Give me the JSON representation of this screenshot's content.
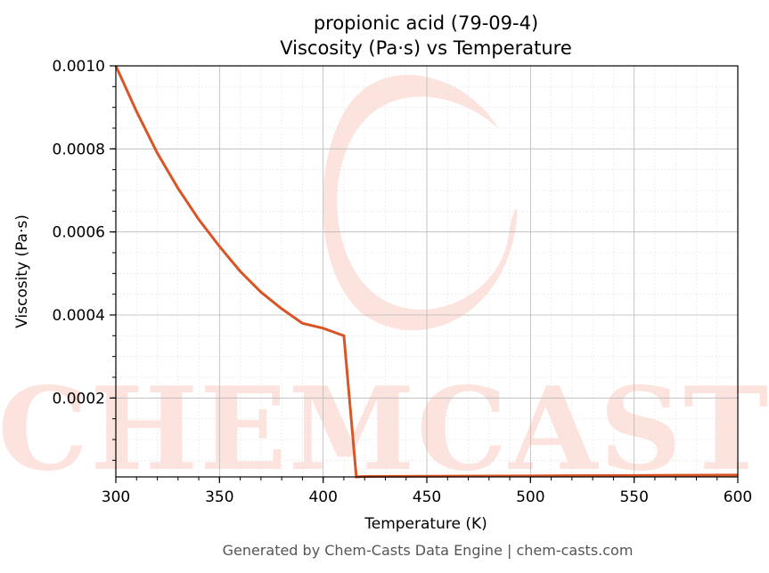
{
  "chart_data": {
    "type": "line",
    "title": "propionic acid (79-09-4)",
    "subtitle": "Viscosity (Pa·s) vs Temperature",
    "xlabel": "Temperature (K)",
    "ylabel": "Viscosity (Pa·s)",
    "xlim": [
      300,
      600
    ],
    "ylim": [
      1e-05,
      0.001
    ],
    "x_ticks": [
      300,
      350,
      400,
      450,
      500,
      550,
      600
    ],
    "x_tick_labels": [
      "300",
      "350",
      "400",
      "450",
      "500",
      "550",
      "600"
    ],
    "y_ticks": [
      0.0002,
      0.0004,
      0.0006,
      0.0008,
      0.001
    ],
    "y_tick_labels": [
      "0.0002",
      "0.0004",
      "0.0006",
      "0.0008",
      "0.0010"
    ],
    "grid": true,
    "line_color": "#d95427",
    "series": [
      {
        "x": [
          300,
          310,
          320,
          330,
          340,
          350,
          360,
          370,
          380,
          390,
          400,
          410,
          416,
          420,
          450,
          500,
          550,
          600
        ],
        "y": [
          0.001,
          0.00089,
          0.00079,
          0.000705,
          0.00063,
          0.000565,
          0.000505,
          0.000455,
          0.000415,
          0.00038,
          0.000368,
          0.00035,
          1e-05,
          1.1e-05,
          1.15e-05,
          1.25e-05,
          1.35e-05,
          1.45e-05
        ]
      }
    ]
  },
  "watermark": {
    "text": "CHEMCASTS",
    "color": "#fde3dd"
  },
  "footer": "Generated by Chem-Casts Data Engine | chem-casts.com"
}
